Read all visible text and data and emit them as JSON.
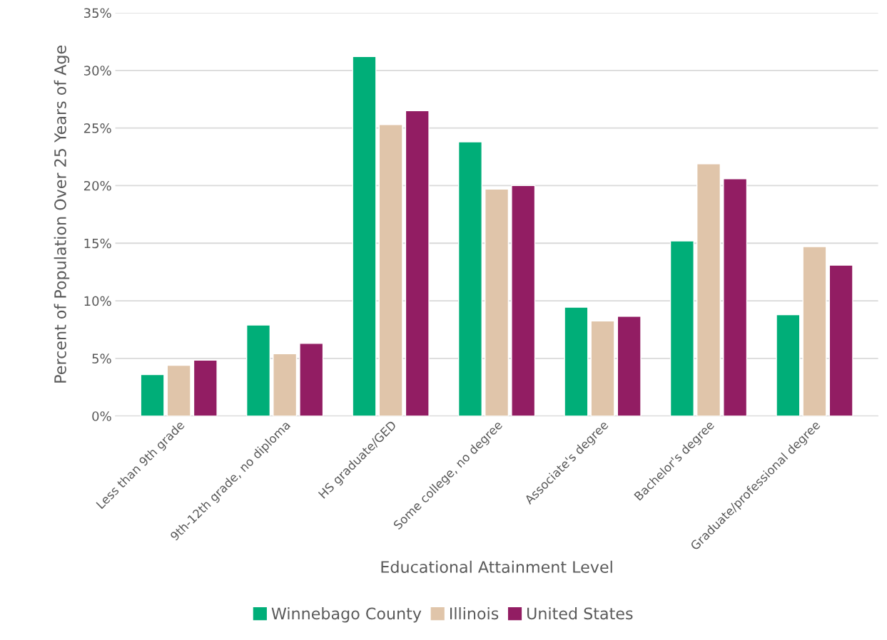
{
  "chart_data": {
    "type": "bar",
    "xlabel": "Educational Attainment Level",
    "ylabel": "Percent of Population Over 25 Years of Age",
    "categories": [
      "Less than 9th grade",
      "9th-12th grade, no diploma",
      "HS graduate/GED",
      "Some college, no degree",
      "Associate's degree",
      "Bachelor's degree",
      "Graduate/professional degree"
    ],
    "series": [
      {
        "name": "Winnebago County",
        "color": "#00ae78",
        "values": [
          3.6,
          7.9,
          31.2,
          23.8,
          9.45,
          15.2,
          8.8
        ]
      },
      {
        "name": "Illinois",
        "color": "#e0c5aa",
        "values": [
          4.4,
          5.4,
          25.3,
          19.7,
          8.25,
          21.9,
          14.7
        ]
      },
      {
        "name": "United States",
        "color": "#921d63",
        "values": [
          4.85,
          6.3,
          26.5,
          20.0,
          8.65,
          20.6,
          13.1
        ]
      }
    ],
    "ylim": [
      0,
      35
    ],
    "yticks": [
      {
        "value": 0,
        "label": "0%"
      },
      {
        "value": 5,
        "label": "5%"
      },
      {
        "value": 10,
        "label": "10%"
      },
      {
        "value": 15,
        "label": "15%"
      },
      {
        "value": 20,
        "label": "20%"
      },
      {
        "value": 25,
        "label": "25%"
      },
      {
        "value": 30,
        "label": "30%"
      },
      {
        "value": 35,
        "label": "35%"
      }
    ],
    "grid": "y",
    "legend": "bottom"
  }
}
